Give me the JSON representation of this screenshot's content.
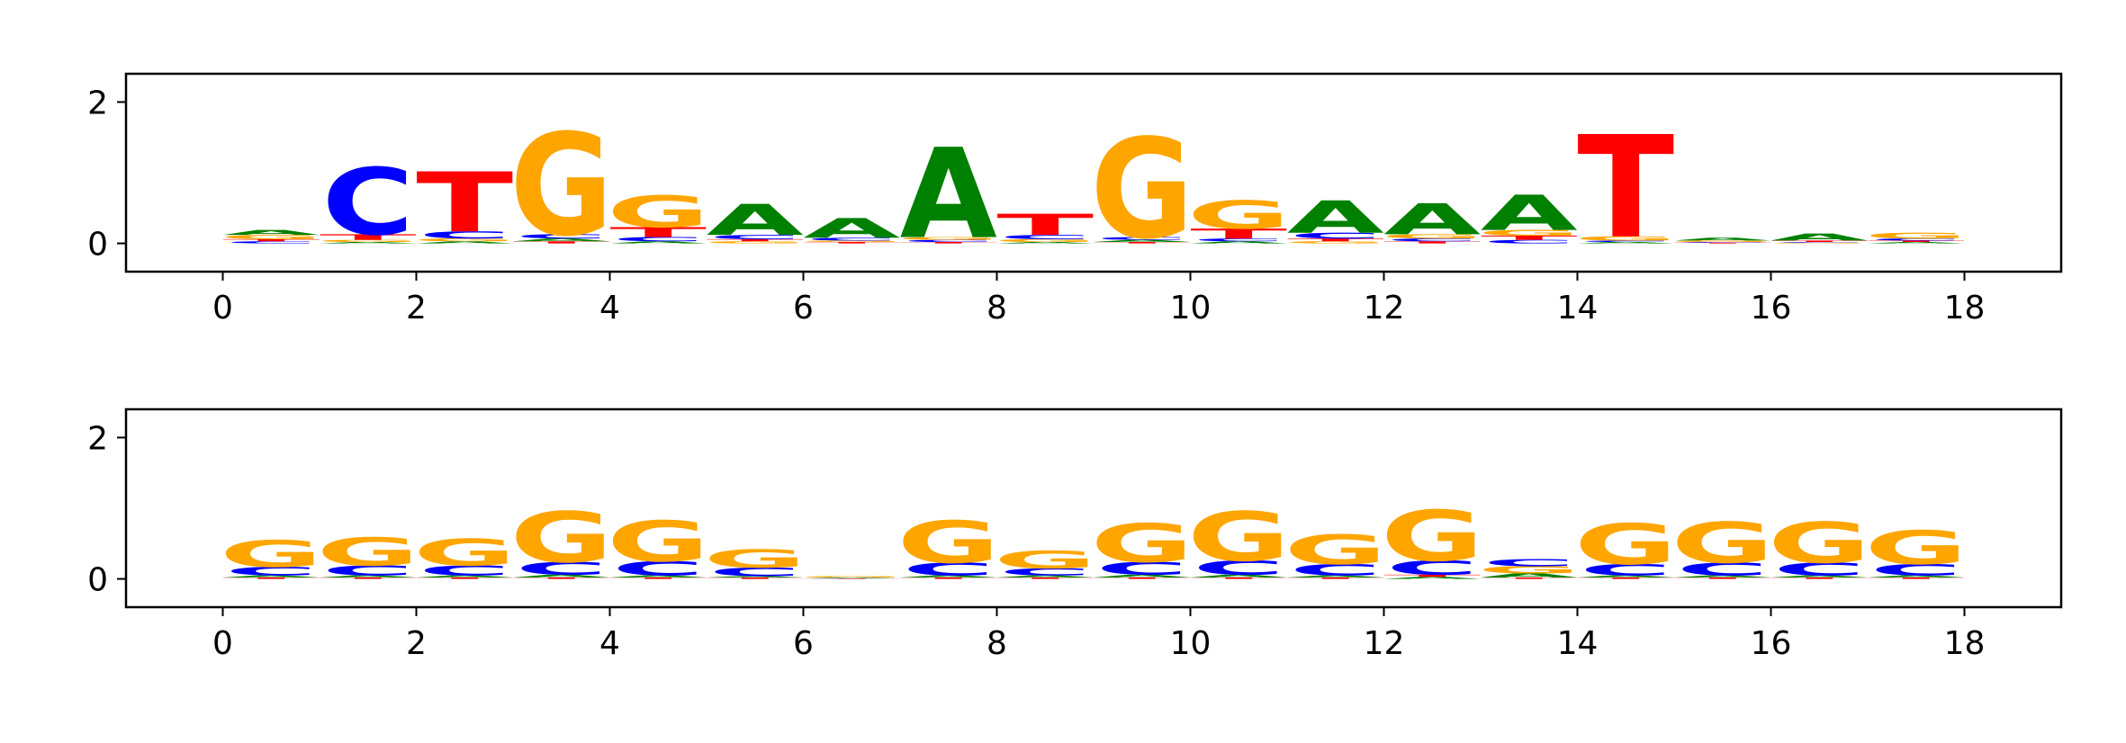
{
  "colors": {
    "A": "#008000",
    "C": "#0000ff",
    "G": "#ffa500",
    "T": "#ff0000"
  },
  "chart_data": [
    {
      "type": "sequence-logo",
      "xlim": [
        -1,
        19
      ],
      "ylim": [
        -0.4,
        2.4
      ],
      "xticks": [
        0,
        2,
        4,
        6,
        8,
        10,
        12,
        14,
        16,
        18
      ],
      "xtick_labels": [
        "0",
        "2",
        "4",
        "6",
        "8",
        "10",
        "12",
        "14",
        "16",
        "18"
      ],
      "yticks": [
        0,
        2
      ],
      "ytick_labels": [
        "0",
        "2"
      ],
      "positions": [
        {
          "x": 0.5,
          "letters": [
            {
              "base": "C",
              "height": 0.03
            },
            {
              "base": "T",
              "height": 0.03
            },
            {
              "base": "G",
              "height": 0.06
            },
            {
              "base": "A",
              "height": 0.07
            }
          ]
        },
        {
          "x": 1.5,
          "letters": [
            {
              "base": "A",
              "height": 0.02
            },
            {
              "base": "G",
              "height": 0.03
            },
            {
              "base": "T",
              "height": 0.08
            },
            {
              "base": "C",
              "height": 0.95
            }
          ]
        },
        {
          "x": 2.5,
          "letters": [
            {
              "base": "A",
              "height": 0.03
            },
            {
              "base": "G",
              "height": 0.04
            },
            {
              "base": "C",
              "height": 0.1
            },
            {
              "base": "T",
              "height": 0.85
            }
          ]
        },
        {
          "x": 3.5,
          "letters": [
            {
              "base": "T",
              "height": 0.03
            },
            {
              "base": "A",
              "height": 0.04
            },
            {
              "base": "C",
              "height": 0.06
            },
            {
              "base": "G",
              "height": 1.45
            }
          ]
        },
        {
          "x": 4.5,
          "letters": [
            {
              "base": "A",
              "height": 0.03
            },
            {
              "base": "C",
              "height": 0.06
            },
            {
              "base": "T",
              "height": 0.14
            },
            {
              "base": "G",
              "height": 0.45
            }
          ]
        },
        {
          "x": 5.5,
          "letters": [
            {
              "base": "G",
              "height": 0.03
            },
            {
              "base": "T",
              "height": 0.03
            },
            {
              "base": "C",
              "height": 0.06
            },
            {
              "base": "A",
              "height": 0.44
            }
          ]
        },
        {
          "x": 6.5,
          "letters": [
            {
              "base": "T",
              "height": 0.02
            },
            {
              "base": "G",
              "height": 0.02
            },
            {
              "base": "C",
              "height": 0.04
            },
            {
              "base": "A",
              "height": 0.28
            }
          ]
        },
        {
          "x": 7.5,
          "letters": [
            {
              "base": "T",
              "height": 0.02
            },
            {
              "base": "C",
              "height": 0.03
            },
            {
              "base": "G",
              "height": 0.04
            },
            {
              "base": "A",
              "height": 1.28
            }
          ]
        },
        {
          "x": 8.5,
          "letters": [
            {
              "base": "A",
              "height": 0.02
            },
            {
              "base": "G",
              "height": 0.04
            },
            {
              "base": "C",
              "height": 0.06
            },
            {
              "base": "T",
              "height": 0.3
            }
          ]
        },
        {
          "x": 9.5,
          "letters": [
            {
              "base": "T",
              "height": 0.02
            },
            {
              "base": "A",
              "height": 0.03
            },
            {
              "base": "C",
              "height": 0.04
            },
            {
              "base": "G",
              "height": 1.42
            }
          ]
        },
        {
          "x": 10.5,
          "letters": [
            {
              "base": "A",
              "height": 0.03
            },
            {
              "base": "C",
              "height": 0.04
            },
            {
              "base": "T",
              "height": 0.14
            },
            {
              "base": "G",
              "height": 0.4
            }
          ]
        },
        {
          "x": 11.5,
          "letters": [
            {
              "base": "G",
              "height": 0.03
            },
            {
              "base": "T",
              "height": 0.04
            },
            {
              "base": "C",
              "height": 0.08
            },
            {
              "base": "A",
              "height": 0.46
            }
          ]
        },
        {
          "x": 12.5,
          "letters": [
            {
              "base": "T",
              "height": 0.03
            },
            {
              "base": "C",
              "height": 0.04
            },
            {
              "base": "G",
              "height": 0.06
            },
            {
              "base": "A",
              "height": 0.44
            }
          ]
        },
        {
          "x": 13.5,
          "letters": [
            {
              "base": "C",
              "height": 0.05
            },
            {
              "base": "T",
              "height": 0.06
            },
            {
              "base": "G",
              "height": 0.08
            },
            {
              "base": "A",
              "height": 0.5
            }
          ]
        },
        {
          "x": 14.5,
          "letters": [
            {
              "base": "A",
              "height": 0.02
            },
            {
              "base": "C",
              "height": 0.02
            },
            {
              "base": "G",
              "height": 0.06
            },
            {
              "base": "T",
              "height": 1.45
            }
          ]
        },
        {
          "x": 15.5,
          "letters": [
            {
              "base": "T",
              "height": 0.01
            },
            {
              "base": "C",
              "height": 0.01
            },
            {
              "base": "G",
              "height": 0.02
            },
            {
              "base": "A",
              "height": 0.04
            }
          ]
        },
        {
          "x": 16.5,
          "letters": [
            {
              "base": "G",
              "height": 0.01
            },
            {
              "base": "C",
              "height": 0.01
            },
            {
              "base": "T",
              "height": 0.02
            },
            {
              "base": "A",
              "height": 0.1
            }
          ]
        },
        {
          "x": 17.5,
          "letters": [
            {
              "base": "A",
              "height": 0.02
            },
            {
              "base": "T",
              "height": 0.02
            },
            {
              "base": "C",
              "height": 0.03
            },
            {
              "base": "G",
              "height": 0.08
            }
          ]
        }
      ]
    },
    {
      "type": "sequence-logo",
      "xlim": [
        -1,
        19
      ],
      "ylim": [
        -0.4,
        2.4
      ],
      "xticks": [
        0,
        2,
        4,
        6,
        8,
        10,
        12,
        14,
        16,
        18
      ],
      "xtick_labels": [
        "0",
        "2",
        "4",
        "6",
        "8",
        "10",
        "12",
        "14",
        "16",
        "18"
      ],
      "yticks": [
        0,
        2
      ],
      "ytick_labels": [
        "0",
        "2"
      ],
      "positions": [
        {
          "x": 0.5,
          "letters": [
            {
              "base": "T",
              "height": 0.02
            },
            {
              "base": "A",
              "height": 0.03
            },
            {
              "base": "C",
              "height": 0.12
            },
            {
              "base": "G",
              "height": 0.38
            }
          ]
        },
        {
          "x": 1.5,
          "letters": [
            {
              "base": "T",
              "height": 0.02
            },
            {
              "base": "A",
              "height": 0.03
            },
            {
              "base": "C",
              "height": 0.14
            },
            {
              "base": "G",
              "height": 0.4
            }
          ]
        },
        {
          "x": 2.5,
          "letters": [
            {
              "base": "T",
              "height": 0.02
            },
            {
              "base": "A",
              "height": 0.03
            },
            {
              "base": "C",
              "height": 0.14
            },
            {
              "base": "G",
              "height": 0.38
            }
          ]
        },
        {
          "x": 3.5,
          "letters": [
            {
              "base": "T",
              "height": 0.02
            },
            {
              "base": "A",
              "height": 0.04
            },
            {
              "base": "C",
              "height": 0.18
            },
            {
              "base": "G",
              "height": 0.72
            }
          ]
        },
        {
          "x": 4.5,
          "letters": [
            {
              "base": "T",
              "height": 0.02
            },
            {
              "base": "A",
              "height": 0.03
            },
            {
              "base": "C",
              "height": 0.2
            },
            {
              "base": "G",
              "height": 0.58
            }
          ]
        },
        {
          "x": 5.5,
          "letters": [
            {
              "base": "T",
              "height": 0.02
            },
            {
              "base": "A",
              "height": 0.02
            },
            {
              "base": "C",
              "height": 0.12
            },
            {
              "base": "G",
              "height": 0.26
            }
          ]
        },
        {
          "x": 6.5,
          "letters": [
            {
              "base": "T",
              "height": 0.005
            },
            {
              "base": "C",
              "height": 0.005
            },
            {
              "base": "A",
              "height": 0.01
            },
            {
              "base": "G",
              "height": 0.02
            }
          ]
        },
        {
          "x": 7.5,
          "letters": [
            {
              "base": "T",
              "height": 0.02
            },
            {
              "base": "A",
              "height": 0.03
            },
            {
              "base": "C",
              "height": 0.18
            },
            {
              "base": "G",
              "height": 0.6
            }
          ]
        },
        {
          "x": 8.5,
          "letters": [
            {
              "base": "T",
              "height": 0.02
            },
            {
              "base": "A",
              "height": 0.03
            },
            {
              "base": "C",
              "height": 0.1
            },
            {
              "base": "G",
              "height": 0.25
            }
          ]
        },
        {
          "x": 9.5,
          "letters": [
            {
              "base": "T",
              "height": 0.02
            },
            {
              "base": "A",
              "height": 0.04
            },
            {
              "base": "C",
              "height": 0.18
            },
            {
              "base": "G",
              "height": 0.55
            }
          ]
        },
        {
          "x": 10.5,
          "letters": [
            {
              "base": "T",
              "height": 0.02
            },
            {
              "base": "A",
              "height": 0.04
            },
            {
              "base": "C",
              "height": 0.2
            },
            {
              "base": "G",
              "height": 0.7
            }
          ]
        },
        {
          "x": 11.5,
          "letters": [
            {
              "base": "T",
              "height": 0.02
            },
            {
              "base": "A",
              "height": 0.03
            },
            {
              "base": "C",
              "height": 0.16
            },
            {
              "base": "G",
              "height": 0.42
            }
          ]
        },
        {
          "x": 12.5,
          "letters": [
            {
              "base": "A",
              "height": 0.03
            },
            {
              "base": "T",
              "height": 0.03
            },
            {
              "base": "C",
              "height": 0.2
            },
            {
              "base": "G",
              "height": 0.72
            }
          ]
        },
        {
          "x": 13.5,
          "letters": [
            {
              "base": "T",
              "height": 0.02
            },
            {
              "base": "A",
              "height": 0.06
            },
            {
              "base": "G",
              "height": 0.1
            },
            {
              "base": "C",
              "height": 0.1
            }
          ]
        },
        {
          "x": 14.5,
          "letters": [
            {
              "base": "T",
              "height": 0.02
            },
            {
              "base": "A",
              "height": 0.03
            },
            {
              "base": "C",
              "height": 0.16
            },
            {
              "base": "G",
              "height": 0.58
            }
          ]
        },
        {
          "x": 15.5,
          "letters": [
            {
              "base": "T",
              "height": 0.02
            },
            {
              "base": "A",
              "height": 0.03
            },
            {
              "base": "C",
              "height": 0.18
            },
            {
              "base": "G",
              "height": 0.58
            }
          ]
        },
        {
          "x": 16.5,
          "letters": [
            {
              "base": "T",
              "height": 0.02
            },
            {
              "base": "A",
              "height": 0.03
            },
            {
              "base": "C",
              "height": 0.18
            },
            {
              "base": "G",
              "height": 0.58
            }
          ]
        },
        {
          "x": 17.5,
          "letters": [
            {
              "base": "T",
              "height": 0.02
            },
            {
              "base": "A",
              "height": 0.03
            },
            {
              "base": "C",
              "height": 0.16
            },
            {
              "base": "G",
              "height": 0.48
            }
          ]
        }
      ]
    }
  ]
}
